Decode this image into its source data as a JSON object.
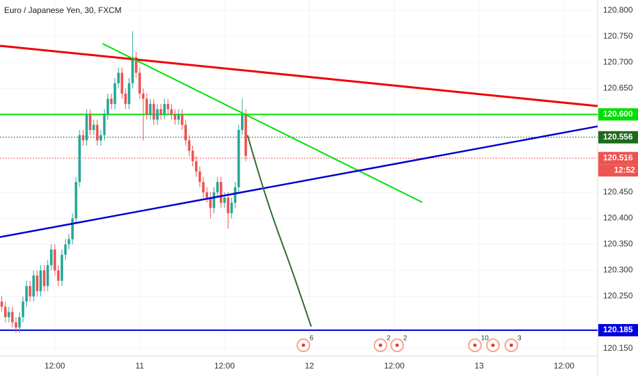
{
  "chart_data": {
    "type": "candlestick",
    "title": "Euro / Japanese Yen, 30, FXCM",
    "up_color": "#26a69a",
    "down_color": "#ef5350",
    "grid": true,
    "xlim": [
      0,
      169
    ],
    "ylim": [
      120.135,
      120.82
    ],
    "xticks": [
      {
        "value": 15.5,
        "label": "12:00"
      },
      {
        "value": 39.5,
        "label": "11"
      },
      {
        "value": 63.5,
        "label": "12:00"
      },
      {
        "value": 87.5,
        "label": "12"
      },
      {
        "value": 111.5,
        "label": "12:00"
      },
      {
        "value": 135.5,
        "label": "13"
      },
      {
        "value": 159.5,
        "label": "12:00"
      }
    ],
    "yticks": [
      {
        "value": 120.8,
        "label": "120.800"
      },
      {
        "value": 120.75,
        "label": "120.750"
      },
      {
        "value": 120.7,
        "label": "120.700"
      },
      {
        "value": 120.65,
        "label": "120.650"
      },
      {
        "value": 120.45,
        "label": "120.450"
      },
      {
        "value": 120.4,
        "label": "120.400"
      },
      {
        "value": 120.35,
        "label": "120.350"
      },
      {
        "value": 120.3,
        "label": "120.300"
      },
      {
        "value": 120.25,
        "label": "120.250"
      },
      {
        "value": 120.15,
        "label": "120.150"
      }
    ],
    "candles": [
      [
        120.24,
        120.25,
        120.22,
        120.23
      ],
      [
        120.23,
        120.24,
        120.2,
        120.21
      ],
      [
        120.21,
        120.23,
        120.2,
        120.22
      ],
      [
        120.22,
        120.23,
        120.19,
        120.2
      ],
      [
        120.2,
        120.21,
        120.18,
        120.19
      ],
      [
        120.19,
        120.22,
        120.18,
        120.21
      ],
      [
        120.21,
        120.25,
        120.2,
        120.24
      ],
      [
        120.24,
        120.28,
        120.23,
        120.27
      ],
      [
        120.27,
        120.28,
        120.24,
        120.25
      ],
      [
        120.25,
        120.3,
        120.24,
        120.29
      ],
      [
        120.29,
        120.3,
        120.25,
        120.26
      ],
      [
        120.26,
        120.31,
        120.25,
        120.3
      ],
      [
        120.3,
        120.31,
        120.26,
        120.27
      ],
      [
        120.27,
        120.32,
        120.26,
        120.31
      ],
      [
        120.31,
        120.35,
        120.3,
        120.34
      ],
      [
        120.34,
        120.35,
        120.29,
        120.3
      ],
      [
        120.3,
        120.31,
        120.27,
        120.28
      ],
      [
        120.28,
        120.34,
        120.27,
        120.33
      ],
      [
        120.33,
        120.36,
        120.32,
        120.35
      ],
      [
        120.35,
        120.37,
        120.34,
        120.36
      ],
      [
        120.36,
        120.41,
        120.35,
        120.4
      ],
      [
        120.4,
        120.48,
        120.39,
        120.47
      ],
      [
        120.47,
        120.57,
        120.46,
        120.56
      ],
      [
        120.56,
        120.57,
        120.54,
        120.55
      ],
      [
        120.55,
        120.61,
        120.54,
        120.6
      ],
      [
        120.6,
        120.61,
        120.56,
        120.57
      ],
      [
        120.57,
        120.59,
        120.56,
        120.58
      ],
      [
        120.58,
        120.59,
        120.54,
        120.55
      ],
      [
        120.55,
        120.57,
        120.54,
        120.56
      ],
      [
        120.56,
        120.61,
        120.55,
        120.6
      ],
      [
        120.6,
        120.64,
        120.59,
        120.63
      ],
      [
        120.63,
        120.64,
        120.61,
        120.62
      ],
      [
        120.62,
        120.67,
        120.61,
        120.66
      ],
      [
        120.66,
        120.69,
        120.65,
        120.68
      ],
      [
        120.68,
        120.69,
        120.63,
        120.64
      ],
      [
        120.64,
        120.65,
        120.61,
        120.62
      ],
      [
        120.62,
        120.67,
        120.61,
        120.66
      ],
      [
        120.66,
        120.76,
        120.65,
        120.71
      ],
      [
        120.71,
        120.72,
        120.67,
        120.68
      ],
      [
        120.68,
        120.69,
        120.63,
        120.64
      ],
      [
        120.64,
        120.65,
        120.55,
        120.63
      ],
      [
        120.63,
        120.64,
        120.59,
        120.6
      ],
      [
        120.6,
        120.63,
        120.59,
        120.62
      ],
      [
        120.62,
        120.63,
        120.58,
        120.59
      ],
      [
        120.59,
        120.62,
        120.58,
        120.61
      ],
      [
        120.61,
        120.62,
        120.59,
        120.6
      ],
      [
        120.6,
        120.63,
        120.59,
        120.62
      ],
      [
        120.62,
        120.63,
        120.6,
        120.61
      ],
      [
        120.61,
        120.62,
        120.59,
        120.6
      ],
      [
        120.6,
        120.61,
        120.58,
        120.59
      ],
      [
        120.59,
        120.61,
        120.58,
        120.6
      ],
      [
        120.6,
        120.61,
        120.57,
        120.58
      ],
      [
        120.58,
        120.59,
        120.54,
        120.55
      ],
      [
        120.55,
        120.56,
        120.52,
        120.53
      ],
      [
        120.53,
        120.54,
        120.5,
        120.51
      ],
      [
        120.51,
        120.52,
        120.48,
        120.49
      ],
      [
        120.49,
        120.5,
        120.46,
        120.47
      ],
      [
        120.47,
        120.48,
        120.44,
        120.45
      ],
      [
        120.45,
        120.46,
        120.43,
        120.44
      ],
      [
        120.44,
        120.45,
        120.4,
        120.42
      ],
      [
        120.42,
        120.46,
        120.41,
        120.45
      ],
      [
        120.45,
        120.48,
        120.44,
        120.47
      ],
      [
        120.47,
        120.48,
        120.42,
        120.43
      ],
      [
        120.43,
        120.45,
        120.42,
        120.44
      ],
      [
        120.44,
        120.45,
        120.38,
        120.41
      ],
      [
        120.41,
        120.44,
        120.4,
        120.43
      ],
      [
        120.43,
        120.47,
        120.42,
        120.46
      ],
      [
        120.46,
        120.58,
        120.45,
        120.57
      ],
      [
        120.57,
        120.63,
        120.56,
        120.6
      ],
      [
        120.6,
        120.61,
        120.51,
        120.52
      ]
    ],
    "trend_lines": [
      {
        "color": "#f00000",
        "width": 3,
        "x": [
          0,
          169
        ],
        "y": [
          120.732,
          120.616
        ]
      },
      {
        "color": "#00e000",
        "width": 2,
        "x": [
          29.0,
          119.4
        ],
        "y": [
          120.736,
          120.431
        ]
      },
      {
        "color": "#0000d0",
        "width": 2.5,
        "x": [
          0,
          169
        ],
        "y": [
          120.364,
          120.577
        ]
      }
    ],
    "forecast": {
      "color": "#2e6b2e",
      "x": [
        70,
        73.5,
        77.4,
        82.2,
        88
      ],
      "y": [
        120.56,
        120.478,
        120.396,
        120.308,
        120.192
      ]
    },
    "price_levels": [
      {
        "value": 120.6,
        "label": "120.600",
        "color": "#00e000",
        "style": "solid"
      },
      {
        "value": 120.556,
        "label": "120.556",
        "color": "#1e6b1e",
        "style": "dotted"
      },
      {
        "value": 120.516,
        "label": "120.516",
        "color": "#ef5350",
        "style": "dotted",
        "sub_label": "12:52"
      },
      {
        "value": 120.185,
        "label": "120.185",
        "color": "#0000e0",
        "style": "solid"
      }
    ],
    "events": [
      {
        "x": 85.8,
        "label": "6"
      },
      {
        "x": 107.6,
        "label": "2"
      },
      {
        "x": 112.3,
        "label": "2"
      },
      {
        "x": 134.3,
        "label": "10"
      },
      {
        "x": 139.4,
        "label": null
      },
      {
        "x": 144.6,
        "label": "3"
      }
    ]
  }
}
